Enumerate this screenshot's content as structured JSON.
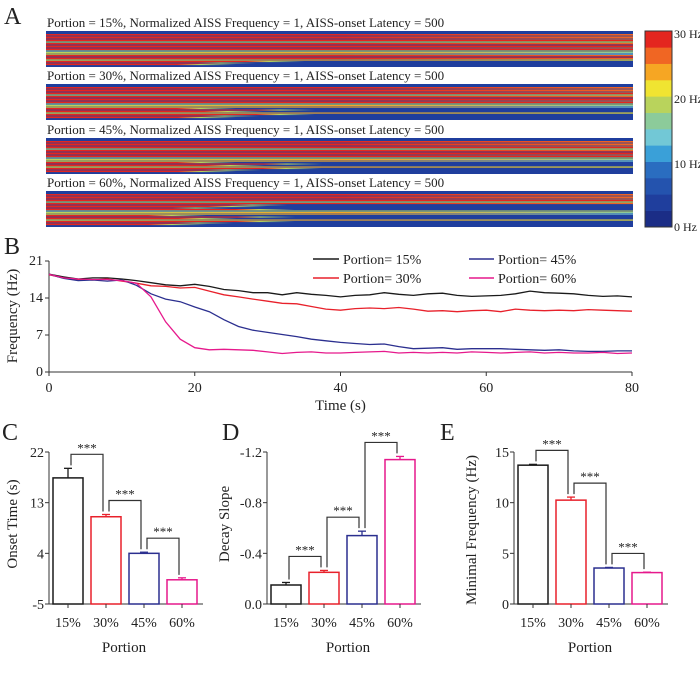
{
  "panel_labels": [
    "A",
    "B",
    "C",
    "D",
    "E"
  ],
  "colors": {
    "p15": "#1a1a1a",
    "p30": "#e8212b",
    "p45": "#2b2f8f",
    "p60": "#e6198c"
  },
  "chart_data": [
    {
      "panel": "A",
      "type": "heatmap",
      "titles": [
        "Portion = 15%, Normalized AISS Frequency = 1, AISS-onset Latency = 500",
        "Portion = 30%, Normalized AISS Frequency = 1, AISS-onset Latency = 500",
        "Portion = 45%, Normalized AISS Frequency = 1, AISS-onset Latency = 500",
        "Portion = 60%, Normalized AISS Frequency = 1, AISS-onset Latency = 500"
      ],
      "portions": [
        0.15,
        0.3,
        0.45,
        0.6
      ],
      "colorbar": {
        "labels": [
          "30 Hz",
          "20 Hz",
          "10 Hz",
          "0 Hz"
        ],
        "range": [
          0,
          30
        ],
        "colors": [
          "#1b2d86",
          "#1f3e9d",
          "#2453ae",
          "#2a6dc0",
          "#3aa0d8",
          "#72c8d6",
          "#8ccb9a",
          "#b9d35c",
          "#f0e431",
          "#f6a623",
          "#f06623",
          "#e4261f"
        ]
      }
    },
    {
      "panel": "B",
      "type": "line",
      "xlabel": "Time (s)",
      "ylabel": "Frequency (Hz)",
      "xlim": [
        0,
        80
      ],
      "ylim": [
        0,
        21
      ],
      "xticks": [
        0,
        20,
        40,
        60,
        80
      ],
      "yticks": [
        0,
        7,
        14,
        21
      ],
      "legend": "top-right",
      "x": [
        0,
        2,
        4,
        6,
        8,
        10,
        12,
        14,
        16,
        18,
        20,
        22,
        24,
        26,
        28,
        30,
        32,
        34,
        36,
        38,
        40,
        42,
        44,
        46,
        48,
        50,
        52,
        54,
        56,
        58,
        60,
        62,
        64,
        66,
        68,
        70,
        72,
        74,
        76,
        78,
        80
      ],
      "series": [
        {
          "name": "Portion= 15%",
          "color": "#1a1a1a",
          "values": [
            18.5,
            18.0,
            17.6,
            17.8,
            17.8,
            17.6,
            17.3,
            16.9,
            16.5,
            16.3,
            16.6,
            16.2,
            15.6,
            15.4,
            15.0,
            15.0,
            14.6,
            15.0,
            14.7,
            14.5,
            14.2,
            14.5,
            14.6,
            15.0,
            14.7,
            14.5,
            14.8,
            14.9,
            14.5,
            14.3,
            14.4,
            14.5,
            14.8,
            15.3,
            15.0,
            14.9,
            14.8,
            14.5,
            14.3,
            14.4,
            14.2
          ]
        },
        {
          "name": "Portion= 30%",
          "color": "#e8212b",
          "values": [
            18.4,
            17.8,
            17.5,
            17.4,
            17.6,
            17.2,
            16.8,
            16.3,
            16.2,
            15.9,
            16.0,
            15.3,
            14.6,
            14.2,
            13.8,
            13.4,
            13.0,
            12.9,
            12.4,
            11.9,
            11.7,
            12.0,
            12.1,
            12.0,
            12.2,
            11.9,
            11.5,
            11.6,
            11.4,
            11.6,
            11.7,
            11.4,
            11.9,
            11.7,
            11.6,
            11.7,
            11.6,
            11.8,
            11.7,
            11.6,
            11.5
          ]
        },
        {
          "name": "Portion= 45%",
          "color": "#2b2f8f",
          "values": [
            18.5,
            17.7,
            17.3,
            17.4,
            17.2,
            17.4,
            16.4,
            14.8,
            13.8,
            13.3,
            12.3,
            11.4,
            9.9,
            8.6,
            7.9,
            7.5,
            7.1,
            6.7,
            6.2,
            5.9,
            5.6,
            5.4,
            5.2,
            5.3,
            4.8,
            4.4,
            4.5,
            4.6,
            4.3,
            4.4,
            4.4,
            4.4,
            4.3,
            4.2,
            4.1,
            4.2,
            4.0,
            3.9,
            3.9,
            4.0,
            4.0
          ]
        },
        {
          "name": "Portion= 60%",
          "color": "#e6198c",
          "values": [
            18.5,
            17.8,
            17.6,
            17.5,
            17.5,
            17.3,
            16.8,
            14.2,
            9.5,
            6.2,
            4.6,
            4.2,
            4.3,
            4.2,
            4.1,
            3.8,
            3.5,
            3.7,
            3.8,
            3.6,
            3.6,
            3.7,
            3.8,
            3.9,
            3.6,
            3.7,
            3.6,
            3.7,
            3.6,
            3.8,
            3.7,
            3.6,
            3.7,
            3.8,
            3.6,
            3.7,
            3.6,
            3.6,
            3.7,
            3.5,
            3.6
          ]
        }
      ]
    },
    {
      "panel": "C",
      "type": "bar",
      "categories": [
        "15%",
        "30%",
        "45%",
        "60%"
      ],
      "values": [
        17.4,
        10.5,
        4.0,
        -0.7
      ],
      "errors": [
        1.7,
        0.4,
        0.2,
        0.35
      ],
      "xlabel": "Portion",
      "ylabel": "Onset Time (s)",
      "ylim": [
        -5,
        22
      ],
      "yticks": [
        -5,
        4,
        13,
        22
      ],
      "ytick_labels": [
        "-5",
        "4",
        "13",
        "22"
      ],
      "significance": [
        {
          "pair": [
            0,
            1
          ],
          "label": "***"
        },
        {
          "pair": [
            1,
            2
          ],
          "label": "***"
        },
        {
          "pair": [
            2,
            3
          ],
          "label": "***"
        }
      ]
    },
    {
      "panel": "D",
      "type": "bar",
      "categories": [
        "15%",
        "30%",
        "45%",
        "60%"
      ],
      "values": [
        -0.15,
        -0.25,
        -0.54,
        -1.14
      ],
      "errors": [
        0.02,
        0.015,
        0.035,
        0.025
      ],
      "xlabel": "Portion",
      "ylabel": "Decay Slope",
      "ylim": [
        0,
        -1.2
      ],
      "yticks": [
        0,
        -0.4,
        -0.8,
        -1.2
      ],
      "ytick_labels": [
        "0.0",
        "-0.4",
        "-0.8",
        "-1.2"
      ],
      "significance": [
        {
          "pair": [
            0,
            1
          ],
          "label": "***"
        },
        {
          "pair": [
            1,
            2
          ],
          "label": "***"
        },
        {
          "pair": [
            2,
            3
          ],
          "label": "***"
        }
      ]
    },
    {
      "panel": "E",
      "type": "bar",
      "categories": [
        "15%",
        "30%",
        "45%",
        "60%"
      ],
      "values": [
        13.7,
        10.25,
        3.55,
        3.1
      ],
      "errors": [
        0.08,
        0.3,
        0.06,
        0.04
      ],
      "xlabel": "Portion",
      "ylabel": "Minimal Frequency (Hz)",
      "ylim": [
        0,
        15
      ],
      "yticks": [
        0,
        5,
        10,
        15
      ],
      "ytick_labels": [
        "0",
        "5",
        "10",
        "15"
      ],
      "significance": [
        {
          "pair": [
            0,
            1
          ],
          "label": "***"
        },
        {
          "pair": [
            1,
            2
          ],
          "label": "***"
        },
        {
          "pair": [
            2,
            3
          ],
          "label": "***"
        }
      ]
    }
  ]
}
